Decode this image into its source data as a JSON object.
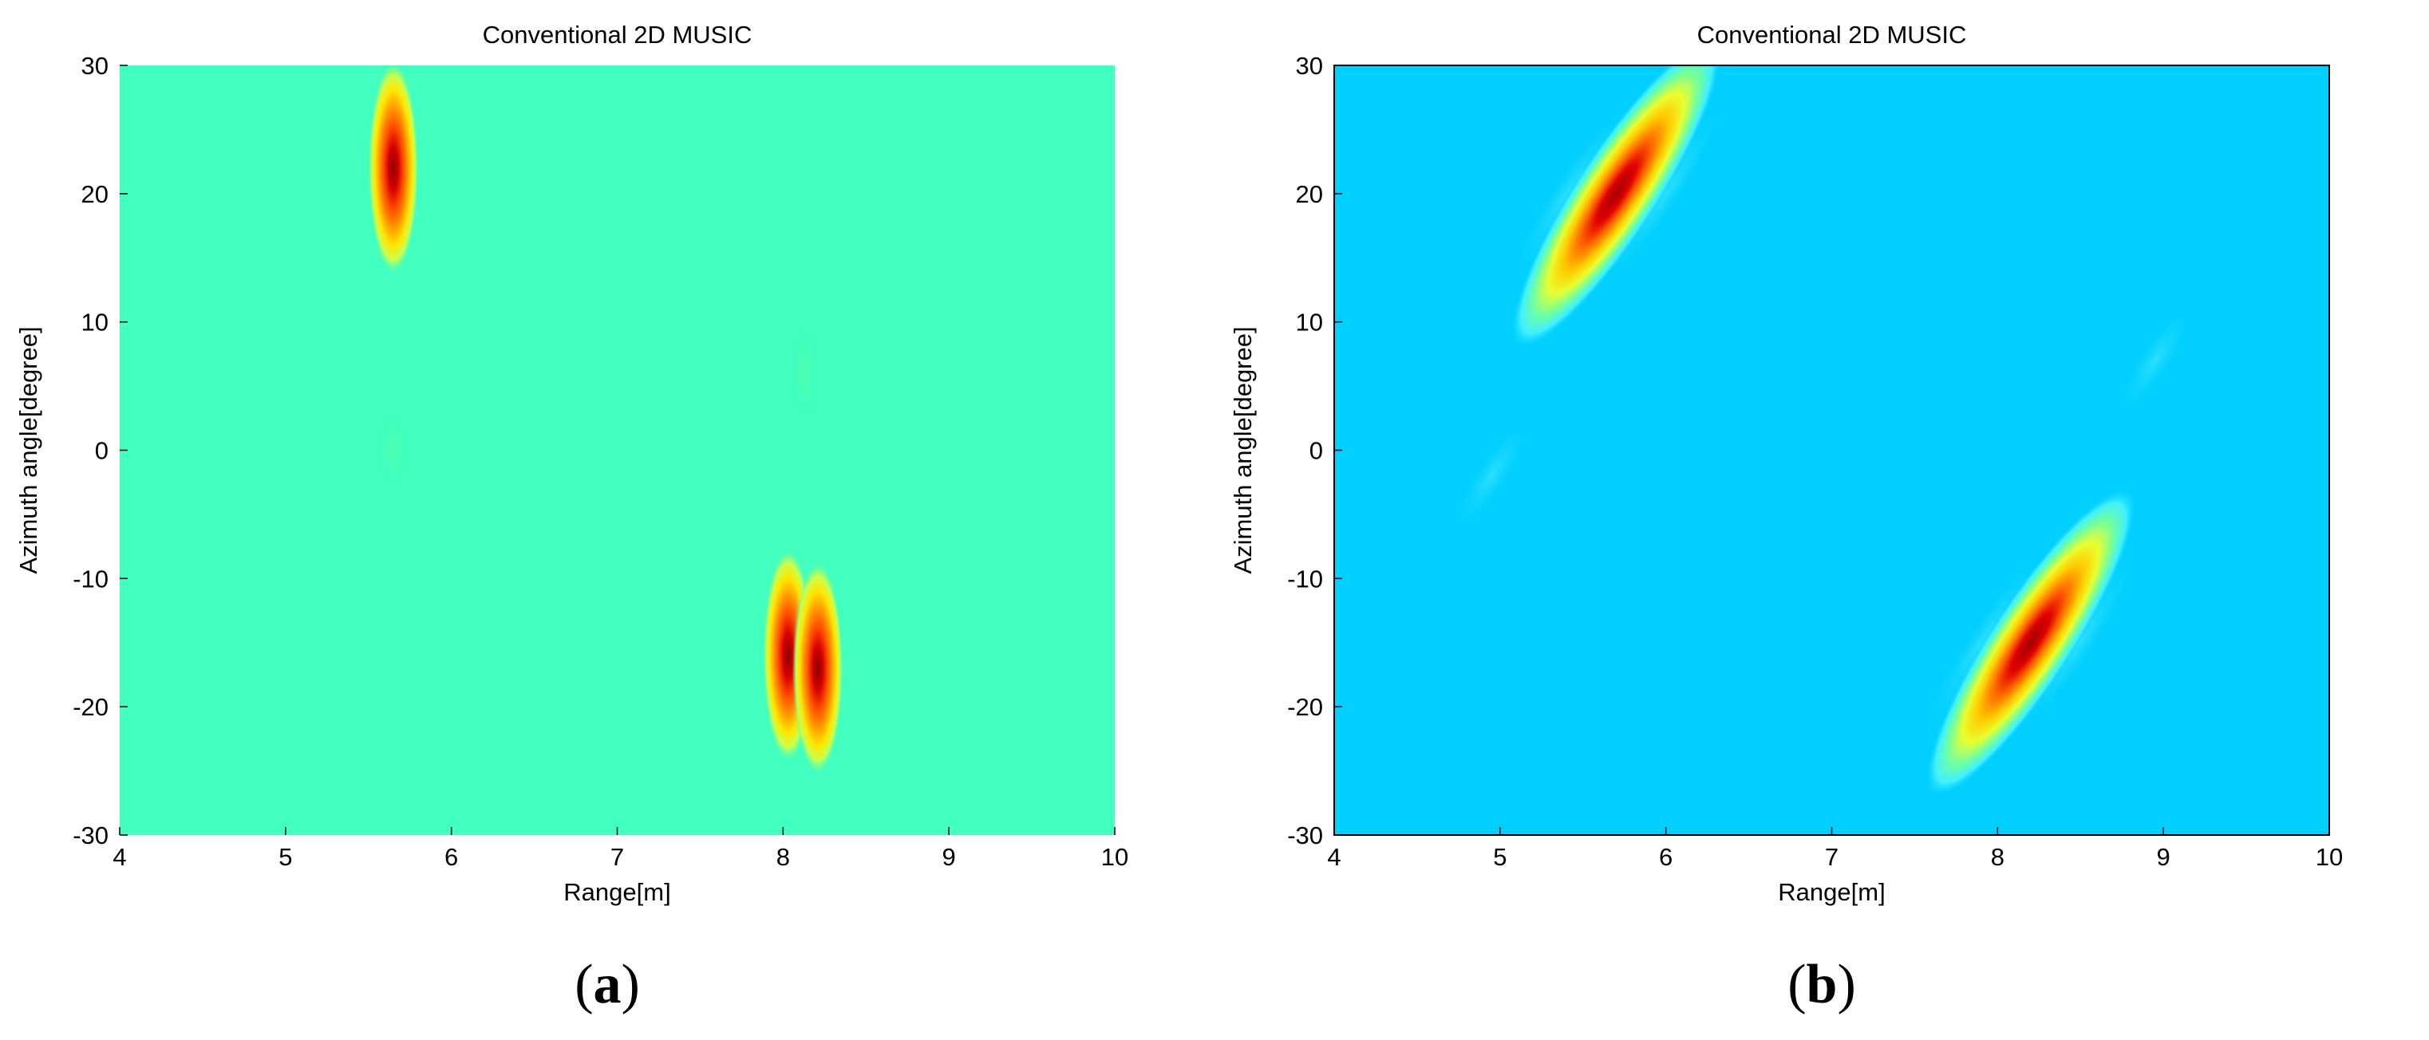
{
  "chart_data": [
    {
      "type": "heatmap",
      "panel_label": "a",
      "title": "Conventional 2D MUSIC",
      "xlabel": "Range[m]",
      "ylabel": "Azimuth angle[degree]",
      "xlim": [
        4,
        10
      ],
      "ylim": [
        -30,
        30
      ],
      "xticks": [
        4,
        5,
        6,
        7,
        8,
        9,
        10
      ],
      "yticks": [
        30,
        20,
        10,
        0,
        -10,
        -20,
        -30
      ],
      "background_color": "#40ffbf",
      "frame": false,
      "peaks": [
        {
          "range_m": 5.65,
          "azimuth_deg": 22,
          "intensity": 1.0
        },
        {
          "range_m": 8.03,
          "azimuth_deg": -16,
          "intensity": 1.0
        },
        {
          "range_m": 8.21,
          "azimuth_deg": -17,
          "intensity": 0.92
        },
        {
          "range_m": 8.13,
          "azimuth_deg": 6,
          "intensity": 0.08
        },
        {
          "range_m": 5.65,
          "azimuth_deg": 0,
          "intensity": 0.06
        }
      ]
    },
    {
      "type": "heatmap",
      "panel_label": "b",
      "title": "Conventional 2D MUSIC",
      "xlabel": "Range[m]",
      "ylabel": "Azimuth angle[degree]",
      "xlim": [
        4,
        10
      ],
      "ylim": [
        -30,
        30
      ],
      "xticks": [
        4,
        5,
        6,
        7,
        8,
        9,
        10
      ],
      "yticks": [
        30,
        20,
        10,
        0,
        -10,
        -20,
        -30
      ],
      "background_color": "#00cfff",
      "frame": true,
      "peaks": [
        {
          "range_m": 5.7,
          "azimuth_deg": 20,
          "intensity": 1.0
        },
        {
          "range_m": 8.2,
          "azimuth_deg": -15,
          "intensity": 1.0
        },
        {
          "range_m": 8.95,
          "azimuth_deg": 7,
          "intensity": 0.08
        },
        {
          "range_m": 4.95,
          "azimuth_deg": -2,
          "intensity": 0.06
        }
      ]
    }
  ],
  "captions": [
    "a",
    "b"
  ]
}
